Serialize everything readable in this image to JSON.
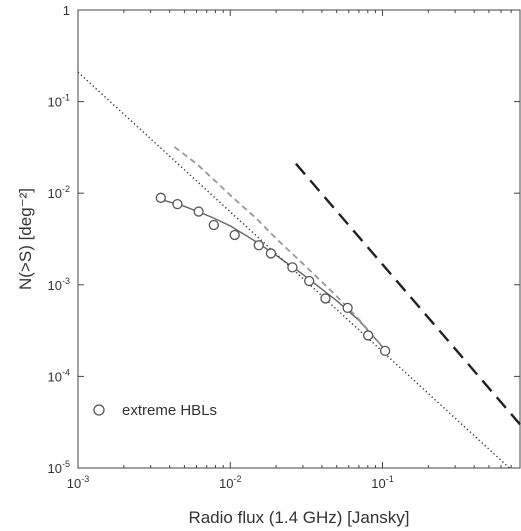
{
  "chart_data": {
    "type": "scatter",
    "title": "",
    "xlabel": "Radio flux (1.4 GHz) [Jansky]",
    "ylabel": "N(>S) [deg⁻²]",
    "xscale": "log",
    "yscale": "log",
    "xlim": [
      0.001,
      0.8
    ],
    "ylim": [
      1e-05,
      1
    ],
    "grid": false,
    "legend_position": "bottom-left",
    "x_ticks": [
      {
        "value": 0.001,
        "base": "10",
        "exp": "-3"
      },
      {
        "value": 0.01,
        "base": "10",
        "exp": "-2"
      },
      {
        "value": 0.1,
        "base": "10",
        "exp": "-1"
      }
    ],
    "y_ticks": [
      {
        "value": 1,
        "base": "1",
        "exp": ""
      },
      {
        "value": 0.1,
        "base": "10",
        "exp": "-1"
      },
      {
        "value": 0.01,
        "base": "10",
        "exp": "-2"
      },
      {
        "value": 0.001,
        "base": "10",
        "exp": "-3"
      },
      {
        "value": 0.0001,
        "base": "10",
        "exp": "-4"
      },
      {
        "value": 1e-05,
        "base": "10",
        "exp": "-5"
      }
    ],
    "series": [
      {
        "name": "extreme HBLs",
        "kind": "points",
        "marker": "open-circle",
        "color": "#555555",
        "x": [
          0.0035,
          0.0045,
          0.0062,
          0.0078,
          0.0107,
          0.0154,
          0.0185,
          0.0256,
          0.033,
          0.0422,
          0.059,
          0.0805,
          0.104
        ],
        "y": [
          0.0089,
          0.0076,
          0.0063,
          0.0045,
          0.0035,
          0.0027,
          0.0022,
          0.00155,
          0.0011,
          0.00071,
          0.00056,
          0.00028,
          0.00019
        ]
      },
      {
        "kind": "solid",
        "color": "#666666",
        "x": [
          0.0033,
          0.005,
          0.0075,
          0.01,
          0.015,
          0.02,
          0.03,
          0.05,
          0.07,
          0.1,
          0.104
        ],
        "y": [
          0.0088,
          0.0072,
          0.0055,
          0.0044,
          0.0029,
          0.0021,
          0.0013,
          0.00067,
          0.00041,
          0.00021,
          0.00019
        ]
      },
      {
        "kind": "dashed-grey",
        "color": "#999999",
        "x": [
          0.0043,
          0.006,
          0.008,
          0.01,
          0.015,
          0.02,
          0.03,
          0.05,
          0.07,
          0.1,
          0.105
        ],
        "y": [
          0.032,
          0.021,
          0.0135,
          0.0095,
          0.0052,
          0.0032,
          0.0017,
          0.00075,
          0.00042,
          0.00021,
          0.00019
        ]
      },
      {
        "kind": "dotted",
        "color": "#333333",
        "x": [
          0.001,
          0.7
        ],
        "y": [
          0.21,
          9.6e-06
        ]
      },
      {
        "kind": "long-dashed",
        "color": "#222222",
        "x": [
          0.027,
          0.8
        ],
        "y": [
          0.021,
          3e-05
        ]
      }
    ]
  }
}
